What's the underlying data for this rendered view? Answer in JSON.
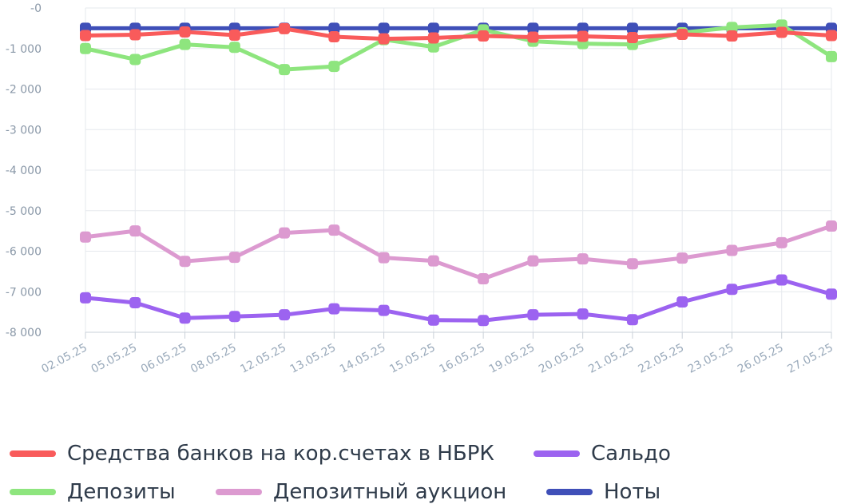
{
  "chart_data": {
    "type": "line",
    "title": "",
    "xlabel": "",
    "ylabel": "",
    "ylim": [
      -8000,
      0
    ],
    "yticks": [
      "-0",
      "-1 000",
      "-2 000",
      "-3 000",
      "-4 000",
      "-5 000",
      "-6 000",
      "-7 000",
      "-8 000"
    ],
    "categories": [
      "02.05.25",
      "05.05.25",
      "06.05.25",
      "08.05.25",
      "12.05.25",
      "13.05.25",
      "14.05.25",
      "15.05.25",
      "16.05.25",
      "19.05.25",
      "20.05.25",
      "21.05.25",
      "22.05.25",
      "23.05.25",
      "26.05.25",
      "27.05.25"
    ],
    "grid": true,
    "legend_position": "bottom",
    "series": [
      {
        "name": "Ноты",
        "color": "#3f4fb8",
        "values": [
          -500,
          -500,
          -500,
          -500,
          -500,
          -500,
          -500,
          -500,
          -500,
          -500,
          -500,
          -500,
          -500,
          -500,
          -500,
          -500
        ]
      },
      {
        "name": "Депозиты",
        "color": "#8ee57e",
        "values": [
          -1000,
          -1270,
          -900,
          -970,
          -1520,
          -1440,
          -780,
          -960,
          -540,
          -820,
          -880,
          -900,
          -610,
          -480,
          -420,
          -1200
        ]
      },
      {
        "name": "Средства банков на кор.счетах в НБРК",
        "color": "#f95b5b",
        "values": [
          -680,
          -660,
          -590,
          -670,
          -510,
          -710,
          -760,
          -740,
          -690,
          -720,
          -700,
          -730,
          -650,
          -690,
          -600,
          -680
        ]
      },
      {
        "name": "Депозитный аукцион",
        "color": "#dc9ad0",
        "values": [
          -5650,
          -5500,
          -6250,
          -6150,
          -5550,
          -5480,
          -6160,
          -6240,
          -6680,
          -6240,
          -6190,
          -6310,
          -6170,
          -5980,
          -5790,
          -5380
        ]
      },
      {
        "name": "Сальдо",
        "color": "#9c63f0",
        "values": [
          -7150,
          -7270,
          -7650,
          -7610,
          -7570,
          -7420,
          -7460,
          -7700,
          -7710,
          -7570,
          -7550,
          -7690,
          -7250,
          -6940,
          -6710,
          -7060
        ]
      }
    ]
  },
  "legend": [
    {
      "label": "Средства банков на кор.счетах в НБРК",
      "color": "#f95b5b"
    },
    {
      "label": "Сальдо",
      "color": "#9c63f0"
    },
    {
      "label": "Депозиты",
      "color": "#8ee57e"
    },
    {
      "label": "Депозитный аукцион",
      "color": "#dc9ad0"
    },
    {
      "label": "Ноты",
      "color": "#3f4fb8"
    }
  ]
}
